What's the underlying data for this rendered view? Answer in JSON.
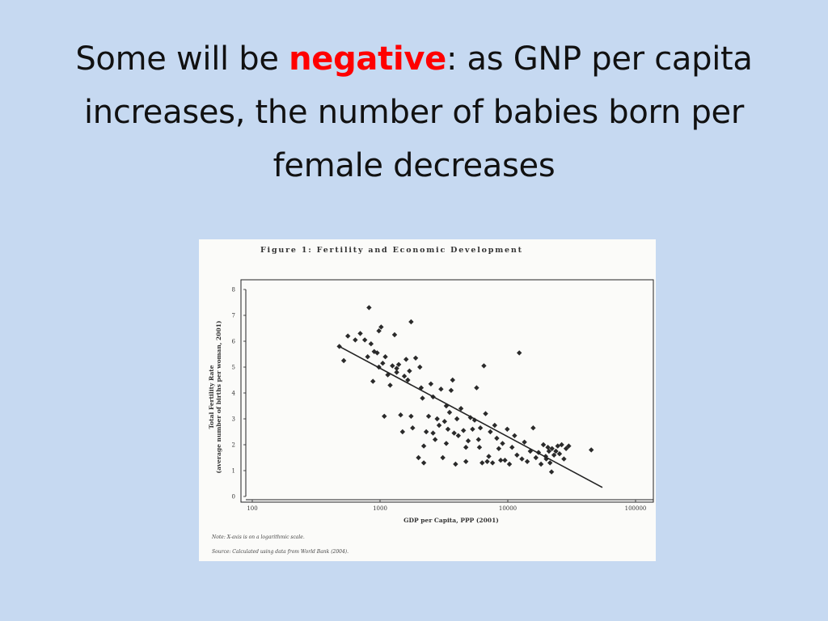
{
  "slide": {
    "title_part1": "Some will be ",
    "title_highlight": "negative",
    "title_part2": ": as GNP per capita increases, the number of babies born per female decreases",
    "highlight_color": "#ff0000",
    "background_color": "#c6d9f1"
  },
  "figure": {
    "caption": "Note: X-axis is on a logarithmic scale.",
    "source": "Source: Calculated using data from World Bank (2004)."
  },
  "chart_data": {
    "type": "scatter",
    "title": "Figure 1: Fertility and Economic Development",
    "xlabel": "GDP per Capita, PPP (2001)",
    "ylabel": "Total Fertility Rate",
    "ylabel2": "(average number of births per woman, 2001)",
    "x_scale": "log",
    "xlim": [
      100,
      100000
    ],
    "ylim": [
      0,
      8
    ],
    "x_ticks": [
      "100",
      "1000",
      "10000",
      "100000"
    ],
    "y_ticks": [
      "0",
      "1",
      "2",
      "3",
      "4",
      "5",
      "6",
      "7",
      "8"
    ],
    "grid": false,
    "trendline": {
      "x": [
        480,
        55000
      ],
      "y": [
        5.8,
        0.35
      ]
    },
    "points": [
      [
        480,
        5.8
      ],
      [
        520,
        5.25
      ],
      [
        560,
        6.2
      ],
      [
        640,
        6.05
      ],
      [
        700,
        6.3
      ],
      [
        760,
        6.05
      ],
      [
        800,
        5.4
      ],
      [
        820,
        7.3
      ],
      [
        850,
        5.9
      ],
      [
        880,
        4.45
      ],
      [
        900,
        5.6
      ],
      [
        950,
        5.55
      ],
      [
        980,
        6.4
      ],
      [
        1020,
        6.55
      ],
      [
        1050,
        5.15
      ],
      [
        1080,
        3.1
      ],
      [
        1150,
        4.7
      ],
      [
        1200,
        4.3
      ],
      [
        1250,
        5.05
      ],
      [
        1300,
        6.25
      ],
      [
        1350,
        4.8
      ],
      [
        1400,
        5.1
      ],
      [
        1450,
        3.15
      ],
      [
        1500,
        2.5
      ],
      [
        1550,
        4.65
      ],
      [
        1600,
        5.3
      ],
      [
        1650,
        4.5
      ],
      [
        1700,
        4.85
      ],
      [
        1750,
        6.75
      ],
      [
        1800,
        2.65
      ],
      [
        1900,
        5.35
      ],
      [
        2000,
        1.5
      ],
      [
        2050,
        5.0
      ],
      [
        2100,
        4.2
      ],
      [
        2150,
        3.8
      ],
      [
        2200,
        1.3
      ],
      [
        2300,
        2.5
      ],
      [
        2400,
        3.1
      ],
      [
        2500,
        4.35
      ],
      [
        2600,
        3.85
      ],
      [
        2700,
        2.2
      ],
      [
        2800,
        3.0
      ],
      [
        2900,
        2.75
      ],
      [
        3000,
        4.15
      ],
      [
        3100,
        1.5
      ],
      [
        3200,
        2.9
      ],
      [
        3300,
        3.5
      ],
      [
        3400,
        2.6
      ],
      [
        3500,
        3.25
      ],
      [
        3600,
        4.1
      ],
      [
        3700,
        4.5
      ],
      [
        3800,
        2.45
      ],
      [
        3900,
        1.25
      ],
      [
        4000,
        3.0
      ],
      [
        4100,
        2.35
      ],
      [
        4300,
        3.4
      ],
      [
        4500,
        2.55
      ],
      [
        4700,
        1.9
      ],
      [
        4900,
        2.15
      ],
      [
        5100,
        3.05
      ],
      [
        5300,
        2.6
      ],
      [
        5500,
        2.95
      ],
      [
        5700,
        4.2
      ],
      [
        5900,
        2.2
      ],
      [
        6100,
        2.65
      ],
      [
        6300,
        1.3
      ],
      [
        6500,
        5.05
      ],
      [
        6700,
        3.2
      ],
      [
        6900,
        1.35
      ],
      [
        7100,
        1.55
      ],
      [
        7300,
        2.5
      ],
      [
        7600,
        1.3
      ],
      [
        7900,
        2.75
      ],
      [
        8200,
        2.25
      ],
      [
        8500,
        1.85
      ],
      [
        8800,
        1.4
      ],
      [
        9100,
        2.05
      ],
      [
        9500,
        1.4
      ],
      [
        9900,
        2.6
      ],
      [
        10300,
        1.25
      ],
      [
        10800,
        1.9
      ],
      [
        11300,
        2.35
      ],
      [
        11800,
        1.6
      ],
      [
        12300,
        5.55
      ],
      [
        12900,
        1.45
      ],
      [
        13500,
        2.1
      ],
      [
        14200,
        1.35
      ],
      [
        15000,
        1.75
      ],
      [
        15800,
        2.65
      ],
      [
        16600,
        1.5
      ],
      [
        17400,
        1.7
      ],
      [
        18200,
        1.25
      ],
      [
        19000,
        2.0
      ],
      [
        19800,
        1.55
      ],
      [
        20600,
        1.9
      ],
      [
        21400,
        1.3
      ],
      [
        22200,
        1.85
      ],
      [
        23000,
        1.6
      ],
      [
        23800,
        1.75
      ],
      [
        24600,
        1.95
      ],
      [
        25400,
        1.65
      ],
      [
        26400,
        2.0
      ],
      [
        27500,
        1.45
      ],
      [
        28600,
        1.85
      ],
      [
        30000,
        1.95
      ],
      [
        22000,
        0.95
      ],
      [
        21000,
        1.75
      ],
      [
        20000,
        1.45
      ],
      [
        45000,
        1.8
      ],
      [
        6000,
        1.9
      ],
      [
        4700,
        1.35
      ],
      [
        3300,
        2.05
      ],
      [
        2600,
        2.45
      ],
      [
        2200,
        1.95
      ],
      [
        1750,
        3.1
      ],
      [
        1350,
        4.95
      ],
      [
        1100,
        5.4
      ],
      [
        980,
        5.0
      ]
    ]
  }
}
